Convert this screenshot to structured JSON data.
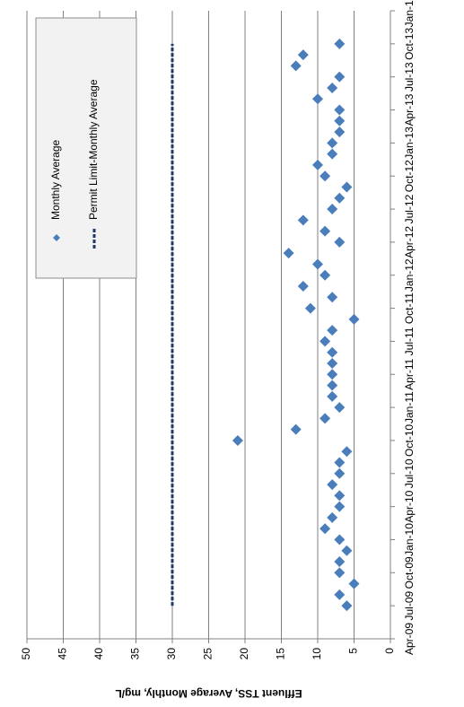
{
  "chart_data": {
    "type": "scatter",
    "y_label": "Effluent TSS, Average Monthly, mg/L",
    "x": [
      "Jul-09",
      "Aug-09",
      "Sep-09",
      "Oct-09",
      "Nov-09",
      "Dec-09",
      "Jan-10",
      "Feb-10",
      "Mar-10",
      "Apr-10",
      "May-10",
      "Jun-10",
      "Jul-10",
      "Aug-10",
      "Sep-10",
      "Oct-10",
      "Nov-10",
      "Dec-10",
      "Jan-11",
      "Feb-11",
      "Mar-11",
      "Apr-11",
      "May-11",
      "Jun-11",
      "Jul-11",
      "Aug-11",
      "Sep-11",
      "Oct-11",
      "Nov-11",
      "Dec-11",
      "Jan-12",
      "Feb-12",
      "Mar-12",
      "Apr-12",
      "May-12",
      "Jun-12",
      "Jul-12",
      "Aug-12",
      "Sep-12",
      "Oct-12",
      "Nov-12",
      "Dec-12",
      "Jan-13",
      "Feb-13",
      "Mar-13",
      "Apr-13",
      "May-13",
      "Jun-13",
      "Jul-13",
      "Aug-13",
      "Sep-13",
      "Oct-13"
    ],
    "series": [
      {
        "name": "Monthly Average",
        "kind": "marker",
        "color": "#4a7ebb",
        "values": [
          6,
          7,
          5,
          7,
          7,
          6,
          7,
          9,
          8,
          7,
          7,
          8,
          7,
          7,
          6,
          21,
          13,
          9,
          7,
          8,
          8,
          8,
          8,
          8,
          9,
          8,
          5,
          11,
          8,
          12,
          9,
          10,
          14,
          7,
          9,
          12,
          8,
          7,
          6,
          9,
          10,
          8,
          8,
          7,
          7,
          7,
          10,
          8,
          7,
          13,
          12,
          7
        ]
      },
      {
        "name": "Permit Limit-Monthly Average",
        "kind": "dashed-line",
        "color": "#1f3864",
        "values": [
          30,
          30,
          30,
          30,
          30,
          30,
          30,
          30,
          30,
          30,
          30,
          30,
          30,
          30,
          30,
          30,
          30,
          30,
          30,
          30,
          30,
          30,
          30,
          30,
          30,
          30,
          30,
          30,
          30,
          30,
          30,
          30,
          30,
          30,
          30,
          30,
          30,
          30,
          30,
          30,
          30,
          30,
          30,
          30,
          30,
          30,
          30,
          30,
          30,
          30,
          30,
          30
        ]
      }
    ],
    "xlim": [
      "Apr-09",
      "Jan-14"
    ],
    "xticks": [
      "Apr-09",
      "Jul-09",
      "Oct-09",
      "Jan-10",
      "Apr-10",
      "Jul-10",
      "Oct-10",
      "Jan-11",
      "Apr-11",
      "Jul-11",
      "Oct-11",
      "Jan-12",
      "Apr-12",
      "Jul-12",
      "Oct-12",
      "Jan-13",
      "Apr-13",
      "Jul-13",
      "Oct-13",
      "Jan-14"
    ],
    "ylim": [
      0,
      50
    ],
    "yticks": [
      0,
      5,
      10,
      15,
      20,
      25,
      30,
      35,
      40,
      45,
      50
    ],
    "grid": true,
    "rotation": -90
  }
}
